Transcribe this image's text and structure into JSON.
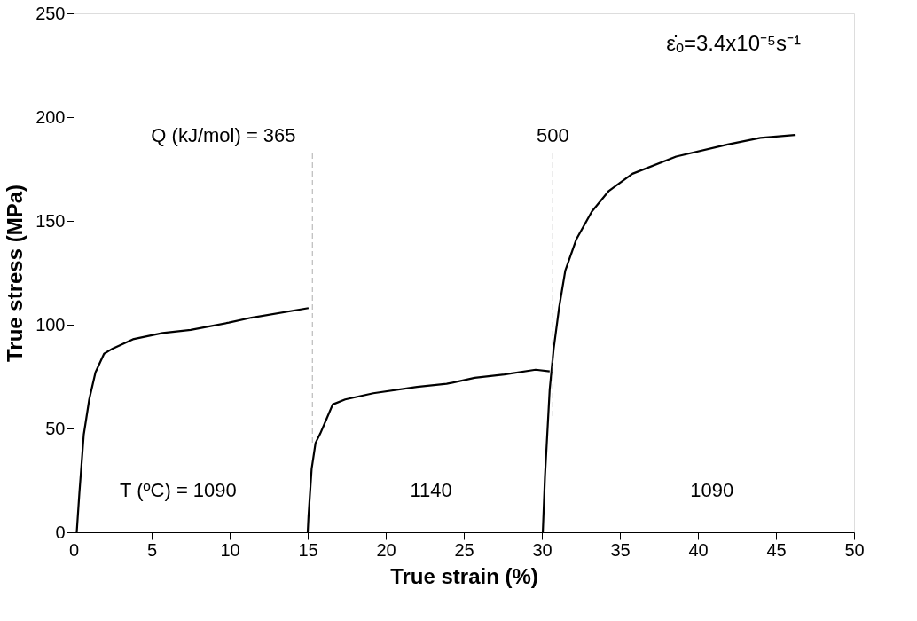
{
  "chart_data": {
    "type": "line",
    "xlabel": "True strain (%)",
    "ylabel": "True stress (MPa)",
    "xlim": [
      0,
      50
    ],
    "xticks": [
      0,
      5,
      10,
      15,
      20,
      25,
      30,
      35,
      40,
      45,
      50
    ],
    "ylim": [
      0,
      250
    ],
    "yticks": [
      0,
      50,
      100,
      150,
      200,
      250
    ],
    "grid": false,
    "line_style": "solid",
    "marker": "none",
    "series": [
      {
        "color": "#000000",
        "x": [
          0.2,
          0.37,
          0.65,
          1.0,
          1.4,
          1.95,
          2.5,
          3.8,
          5.7,
          7.5,
          9.95,
          11.4,
          15.05
        ],
        "values": [
          0,
          19,
          47,
          64,
          77,
          86,
          88.5,
          93,
          96,
          97.5,
          101,
          103.4,
          108
        ]
      },
      {
        "color": "#000000",
        "x": [
          15.0,
          15.05,
          15.25,
          15.5,
          15.8,
          16.2,
          16.6,
          17.4,
          19.2,
          22.0,
          23.9,
          25.7,
          27.6,
          29.6,
          30.5
        ],
        "values": [
          0,
          7.8,
          30.5,
          43,
          47.5,
          54.5,
          61.6,
          64,
          67,
          70,
          71.5,
          74.4,
          76,
          78.3,
          77.5
        ]
      },
      {
        "color": "#000000",
        "x": [
          30.06,
          30.2,
          30.5,
          30.75,
          31.1,
          31.5,
          32.2,
          33.2,
          34.3,
          35.8,
          38.6,
          41.9,
          44.0,
          46.2
        ],
        "values": [
          0,
          27,
          68.6,
          88,
          108,
          126,
          141,
          154.5,
          164.5,
          172.7,
          181,
          186.8,
          190,
          191.4
        ]
      }
    ],
    "ref_lines": [
      {
        "axis": "x",
        "value": 15.3,
        "color": "#bbbbbb",
        "line_style": "dashed"
      },
      {
        "axis": "x",
        "value": 30.7,
        "color": "#bbbbbb",
        "line_style": "dashed"
      }
    ],
    "annotations": [
      "Q (kJ/mol) = 365",
      "500",
      "T (ºC) = 1090",
      "1140",
      "1090",
      "ε̇ₒ=3.4x10⁻⁵s⁻¹"
    ]
  }
}
